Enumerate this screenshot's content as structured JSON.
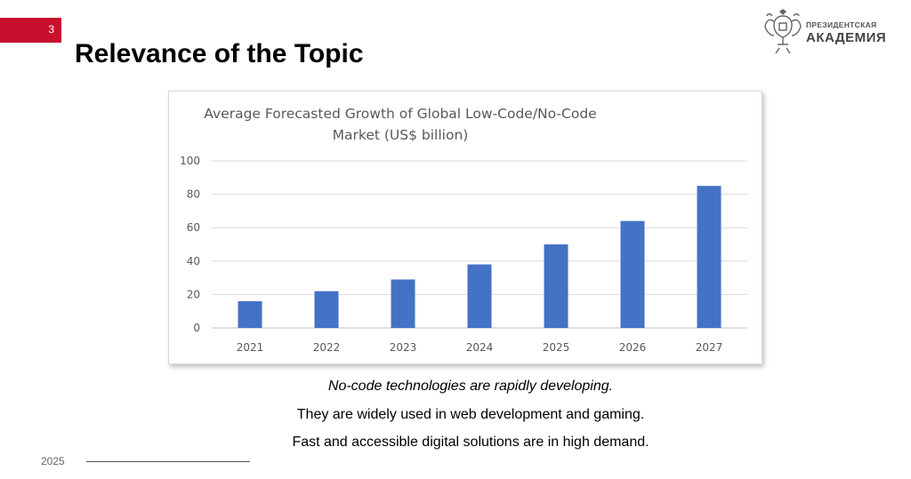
{
  "slide": {
    "number": "3",
    "title": "Relevance of the Topic",
    "footer_year": "2025",
    "accent_color": "#c8102e"
  },
  "logo": {
    "line1": "ПРЕЗИДЕНТСКАЯ",
    "line2": "АКАДЕМИЯ",
    "icon": "double-headed-eagle-icon"
  },
  "chart_data": {
    "type": "bar",
    "title": "Average Forecasted Growth of Global Low-Code/No-Code Market (US$ billion)",
    "title_lines": [
      "Average Forecasted Growth of Global Low-Code/No-Code",
      "Market (US$ billion)"
    ],
    "categories": [
      "2021",
      "2022",
      "2023",
      "2024",
      "2025",
      "2026",
      "2027"
    ],
    "values": [
      16,
      22,
      29,
      38,
      50,
      64,
      85
    ],
    "ylim": [
      0,
      100
    ],
    "yticks": [
      0,
      20,
      40,
      60,
      80,
      100
    ],
    "grid": true,
    "legend": "none",
    "bar_color": "#4472c4"
  },
  "captions": [
    "No-code technologies are rapidly developing.",
    "They are widely used in web development and gaming.",
    "Fast and accessible digital solutions are in high demand."
  ]
}
